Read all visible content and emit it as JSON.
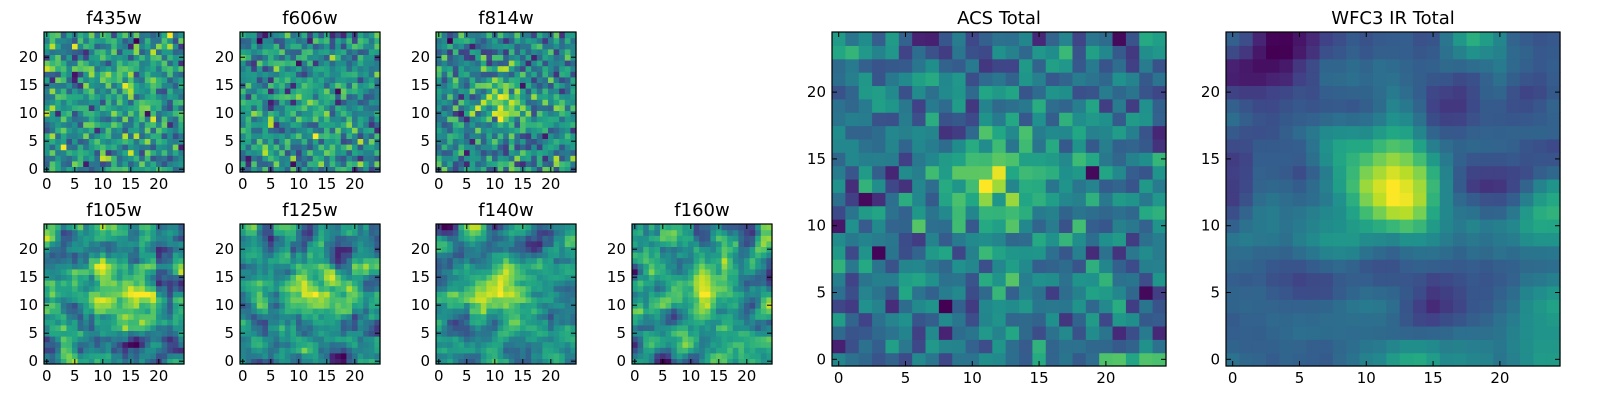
{
  "chart_data": [
    {
      "id": "f435w",
      "type": "heatmap",
      "title": "f435w",
      "grid_size": 25,
      "xlim": [
        0,
        24
      ],
      "ylim": [
        0,
        24
      ],
      "xticks": [
        0,
        5,
        10,
        15,
        20
      ],
      "yticks": [
        0,
        5,
        10,
        15,
        20
      ],
      "colormap": "viridis",
      "center": [
        14,
        15
      ],
      "smooth_scale": 1,
      "noise": 0.9,
      "peak": 0.25,
      "seed": 11
    },
    {
      "id": "f606w",
      "type": "heatmap",
      "title": "f606w",
      "grid_size": 25,
      "xlim": [
        0,
        24
      ],
      "ylim": [
        0,
        24
      ],
      "xticks": [
        0,
        5,
        10,
        15,
        20
      ],
      "yticks": [
        0,
        5,
        10,
        15,
        20
      ],
      "colormap": "viridis",
      "center": [
        12,
        12
      ],
      "smooth_scale": 1,
      "noise": 0.9,
      "peak": 0.2,
      "seed": 23
    },
    {
      "id": "f814w",
      "type": "heatmap",
      "title": "f814w",
      "grid_size": 25,
      "xlim": [
        0,
        24
      ],
      "ylim": [
        0,
        24
      ],
      "xticks": [
        0,
        5,
        10,
        15,
        20
      ],
      "yticks": [
        0,
        5,
        10,
        15,
        20
      ],
      "colormap": "viridis",
      "center": [
        12,
        12
      ],
      "smooth_scale": 1,
      "noise": 0.85,
      "peak": 0.4,
      "seed": 37
    },
    {
      "id": "f105w",
      "type": "heatmap",
      "title": "f105w",
      "grid_size": 25,
      "xlim": [
        0,
        24
      ],
      "ylim": [
        0,
        24
      ],
      "xticks": [
        0,
        5,
        10,
        15,
        20
      ],
      "yticks": [
        0,
        5,
        10,
        15,
        20
      ],
      "colormap": "viridis",
      "center": [
        14,
        12
      ],
      "smooth_scale": 2,
      "noise": 0.6,
      "peak": 0.6,
      "seed": 41
    },
    {
      "id": "f125w",
      "type": "heatmap",
      "title": "f125w",
      "grid_size": 25,
      "xlim": [
        0,
        24
      ],
      "ylim": [
        0,
        24
      ],
      "xticks": [
        0,
        5,
        10,
        15,
        20
      ],
      "yticks": [
        0,
        5,
        10,
        15,
        20
      ],
      "colormap": "viridis",
      "center": [
        13,
        13
      ],
      "smooth_scale": 2,
      "noise": 0.6,
      "peak": 0.5,
      "seed": 53
    },
    {
      "id": "f140w",
      "type": "heatmap",
      "title": "f140w",
      "grid_size": 25,
      "xlim": [
        0,
        24
      ],
      "ylim": [
        0,
        24
      ],
      "xticks": [
        0,
        5,
        10,
        15,
        20
      ],
      "yticks": [
        0,
        5,
        10,
        15,
        20
      ],
      "colormap": "viridis",
      "center": [
        11,
        13
      ],
      "smooth_scale": 2,
      "noise": 0.65,
      "peak": 0.6,
      "seed": 67
    },
    {
      "id": "f160w",
      "type": "heatmap",
      "title": "f160w",
      "grid_size": 25,
      "xlim": [
        0,
        24
      ],
      "ylim": [
        0,
        24
      ],
      "xticks": [
        0,
        5,
        10,
        15,
        20
      ],
      "yticks": [
        0,
        5,
        10,
        15,
        20
      ],
      "colormap": "viridis",
      "center": [
        12,
        13
      ],
      "smooth_scale": 2,
      "noise": 0.6,
      "peak": 0.6,
      "seed": 71
    },
    {
      "id": "acs-total",
      "type": "heatmap",
      "title": "ACS Total",
      "grid_size": 25,
      "xlim": [
        0,
        24
      ],
      "ylim": [
        0,
        24
      ],
      "xticks": [
        0,
        5,
        10,
        15,
        20
      ],
      "yticks": [
        0,
        5,
        10,
        15,
        20
      ],
      "colormap": "viridis",
      "center": [
        12,
        13
      ],
      "smooth_scale": 1,
      "noise": 0.8,
      "peak": 0.6,
      "seed": 83
    },
    {
      "id": "wfc3-ir-total",
      "type": "heatmap",
      "title": "WFC3 IR Total",
      "grid_size": 25,
      "xlim": [
        0,
        24
      ],
      "ylim": [
        0,
        24
      ],
      "xticks": [
        0,
        5,
        10,
        15,
        20
      ],
      "yticks": [
        0,
        5,
        10,
        15,
        20
      ],
      "colormap": "viridis",
      "center": [
        12,
        13
      ],
      "smooth_scale": 3,
      "noise": 0.5,
      "peak": 0.8,
      "seed": 97
    }
  ]
}
